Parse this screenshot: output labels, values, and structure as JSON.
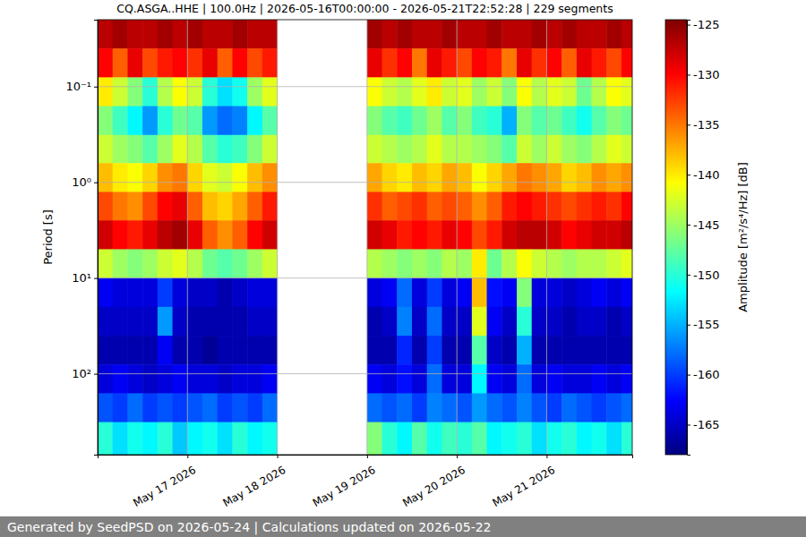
{
  "chart_data": {
    "type": "heatmap",
    "title": "CQ.ASGA..HHE | 100.0Hz | 2026-05-16T00:00:00 - 2026-05-21T22:52:28 | 229 segments",
    "ylabel": "Period [s]",
    "footer": "Generated by SeedPSD on 2026-05-24 | Calculations updated on 2026-05-22",
    "log": "y",
    "grid": true,
    "xlim": [
      "2026-05-16T00:00:00",
      "2026-05-21T22:52:28"
    ],
    "xticks": [
      {
        "value": "2026-05-17T00:00:00",
        "label": "May 17 2026"
      },
      {
        "value": "2026-05-18T00:00:00",
        "label": "May 18 2026"
      },
      {
        "value": "2026-05-19T00:00:00",
        "label": "May 19 2026"
      },
      {
        "value": "2026-05-20T00:00:00",
        "label": "May 20 2026"
      },
      {
        "value": "2026-05-21T00:00:00",
        "label": "May 21 2026"
      }
    ],
    "ylim": [
      0.02,
      700
    ],
    "yticks": [
      {
        "value": 0.1,
        "label": "10⁻¹"
      },
      {
        "value": 1,
        "label": "10⁰"
      },
      {
        "value": 10,
        "label": "10¹"
      },
      {
        "value": 100,
        "label": "10²"
      }
    ],
    "colorbar": {
      "label": "Amplitude [m²/s⁴/Hz] [dB]",
      "lim": [
        -168,
        -124.5
      ],
      "ticks": [
        -125,
        -130,
        -135,
        -140,
        -145,
        -150,
        -155,
        -160,
        -165
      ]
    },
    "x_bins": [
      "2026-05-16T00:00:00",
      "2026-05-16T04:00:00",
      "2026-05-16T08:00:00",
      "2026-05-16T12:00:00",
      "2026-05-16T16:00:00",
      "2026-05-16T20:00:00",
      "2026-05-17T00:00:00",
      "2026-05-17T04:00:00",
      "2026-05-17T08:00:00",
      "2026-05-17T12:00:00",
      "2026-05-17T16:00:00",
      "2026-05-17T20:00:00",
      "2026-05-18T00:00:00",
      "2026-05-18T04:00:00",
      "2026-05-18T08:00:00",
      "2026-05-18T12:00:00",
      "2026-05-18T16:00:00",
      "2026-05-18T20:00:00",
      "2026-05-19T00:00:00",
      "2026-05-19T04:00:00",
      "2026-05-19T08:00:00",
      "2026-05-19T12:00:00",
      "2026-05-19T16:00:00",
      "2026-05-19T20:00:00",
      "2026-05-20T00:00:00",
      "2026-05-20T04:00:00",
      "2026-05-20T08:00:00",
      "2026-05-20T12:00:00",
      "2026-05-20T16:00:00",
      "2026-05-20T20:00:00",
      "2026-05-21T00:00:00",
      "2026-05-21T04:00:00",
      "2026-05-21T08:00:00",
      "2026-05-21T12:00:00",
      "2026-05-21T16:00:00",
      "2026-05-21T20:00:00",
      "2026-05-22T00:00:00"
    ],
    "y_bins": [
      0.02,
      0.04,
      0.08,
      0.16,
      0.32,
      0.63,
      1.26,
      2.5,
      5,
      10,
      20,
      40,
      80,
      160,
      320,
      700
    ],
    "values": [
      [
        -127,
        -126,
        -127,
        -127,
        -126,
        -127,
        -126,
        -127,
        -127,
        -126,
        -127,
        -127,
        null,
        null,
        null,
        null,
        null,
        null,
        -126,
        -127,
        -126,
        -127,
        -127,
        -126,
        -127,
        -127,
        -126,
        -127,
        -127,
        -126,
        -127,
        -126,
        -127,
        -127,
        -126,
        -127
      ],
      [
        -130,
        -134,
        -129,
        -133,
        -131,
        -130,
        -132,
        -129,
        -134,
        -130,
        -133,
        -131,
        null,
        null,
        null,
        null,
        null,
        null,
        -129,
        -132,
        -130,
        -135,
        -129,
        -131,
        -133,
        -130,
        -131,
        -135,
        -129,
        -132,
        -130,
        -134,
        -129,
        -131,
        -133,
        -130
      ],
      [
        -140,
        -143,
        -146,
        -150,
        -144,
        -141,
        -143,
        -150,
        -153,
        -151,
        -145,
        -142,
        null,
        null,
        null,
        null,
        null,
        null,
        -141,
        -143,
        -144,
        -142,
        -140,
        -143,
        -142,
        -145,
        -143,
        -146,
        -141,
        -144,
        -142,
        -143,
        -147,
        -144,
        -141,
        -142
      ],
      [
        -146,
        -149,
        -152,
        -156,
        -150,
        -147,
        -148,
        -156,
        -158,
        -157,
        -152,
        -148,
        null,
        null,
        null,
        null,
        null,
        null,
        -146,
        -148,
        -149,
        -147,
        -145,
        -148,
        -146,
        -149,
        -150,
        -155,
        -146,
        -148,
        -147,
        -149,
        -151,
        -148,
        -146,
        -147
      ],
      [
        -143,
        -145,
        -146,
        -148,
        -145,
        -142,
        -144,
        -148,
        -150,
        -149,
        -146,
        -143,
        null,
        null,
        null,
        null,
        null,
        null,
        -143,
        -144,
        -145,
        -144,
        -142,
        -144,
        -144,
        -145,
        -146,
        -148,
        -143,
        -145,
        -143,
        -145,
        -146,
        -144,
        -142,
        -143
      ],
      [
        -138,
        -140,
        -141,
        -139,
        -136,
        -135,
        -139,
        -142,
        -143,
        -141,
        -138,
        -136,
        null,
        null,
        null,
        null,
        null,
        null,
        -137,
        -139,
        -140,
        -138,
        -139,
        -137,
        -138,
        -141,
        -139,
        -137,
        -135,
        -136,
        -137,
        -139,
        -138,
        -136,
        -137,
        -136
      ],
      [
        -133,
        -135,
        -136,
        -133,
        -130,
        -129,
        -134,
        -138,
        -139,
        -137,
        -134,
        -131,
        null,
        null,
        null,
        null,
        null,
        null,
        -132,
        -134,
        -133,
        -132,
        -134,
        -133,
        -134,
        -136,
        -134,
        -131,
        -130,
        -131,
        -132,
        -133,
        -132,
        -131,
        -132,
        -130
      ],
      [
        -128,
        -130,
        -131,
        -129,
        -127,
        -126,
        -129,
        -134,
        -136,
        -134,
        -130,
        -128,
        null,
        null,
        null,
        null,
        null,
        null,
        -128,
        -129,
        -131,
        -130,
        -131,
        -129,
        -130,
        -133,
        -131,
        -128,
        -127,
        -127,
        -128,
        -130,
        -129,
        -128,
        -128,
        -127
      ],
      [
        -143,
        -145,
        -146,
        -145,
        -143,
        -142,
        -144,
        -147,
        -148,
        -147,
        -145,
        -143,
        null,
        null,
        null,
        null,
        null,
        null,
        -144,
        -145,
        -146,
        -145,
        -146,
        -144,
        -145,
        -140,
        -147,
        -144,
        -141,
        -143,
        -144,
        -145,
        -144,
        -144,
        -143,
        -142
      ],
      [
        -163,
        -164,
        -164,
        -164,
        -160,
        -164,
        -165,
        -165,
        -166,
        -165,
        -164,
        -164,
        null,
        null,
        null,
        null,
        null,
        null,
        -164,
        -163,
        -158,
        -164,
        -160,
        -164,
        -163,
        -138,
        -162,
        -163,
        -146,
        -164,
        -164,
        -165,
        -164,
        -163,
        -164,
        -163
      ],
      [
        -165,
        -165,
        -165,
        -165,
        -156,
        -165,
        -166,
        -166,
        -166,
        -166,
        -165,
        -165,
        null,
        null,
        null,
        null,
        null,
        null,
        -166,
        -165,
        -157,
        -165,
        -158,
        -165,
        -165,
        -142,
        -163,
        -165,
        -150,
        -165,
        -165,
        -166,
        -165,
        -165,
        -166,
        -165
      ],
      [
        -166,
        -166,
        -166,
        -166,
        -163,
        -166,
        -166,
        -167,
        -166,
        -166,
        -166,
        -166,
        null,
        null,
        null,
        null,
        null,
        null,
        -166,
        -166,
        -161,
        -166,
        -160,
        -166,
        -166,
        -148,
        -165,
        -166,
        -155,
        -166,
        -166,
        -166,
        -166,
        -166,
        -166,
        -166
      ],
      [
        -164,
        -163,
        -164,
        -165,
        -164,
        -163,
        -164,
        -164,
        -165,
        -164,
        -164,
        -163,
        null,
        null,
        null,
        null,
        null,
        null,
        -163,
        -164,
        -162,
        -164,
        -158,
        -164,
        -164,
        -152,
        -163,
        -164,
        -158,
        -164,
        -163,
        -164,
        -164,
        -163,
        -164,
        -163
      ],
      [
        -159,
        -160,
        -158,
        -160,
        -159,
        -160,
        -159,
        -158,
        -160,
        -159,
        -160,
        -158,
        null,
        null,
        null,
        null,
        null,
        null,
        -158,
        -159,
        -158,
        -160,
        -157,
        -158,
        -159,
        -156,
        -158,
        -159,
        -157,
        -159,
        -160,
        -158,
        -159,
        -160,
        -159,
        -158
      ],
      [
        -150,
        -153,
        -151,
        -152,
        -150,
        -154,
        -152,
        -151,
        -153,
        -150,
        -152,
        -151,
        null,
        null,
        null,
        null,
        null,
        null,
        -146,
        -150,
        -152,
        -148,
        -151,
        -149,
        -150,
        -148,
        -152,
        -151,
        -150,
        -153,
        -151,
        -150,
        -152,
        -151,
        -153,
        -150
      ]
    ]
  }
}
